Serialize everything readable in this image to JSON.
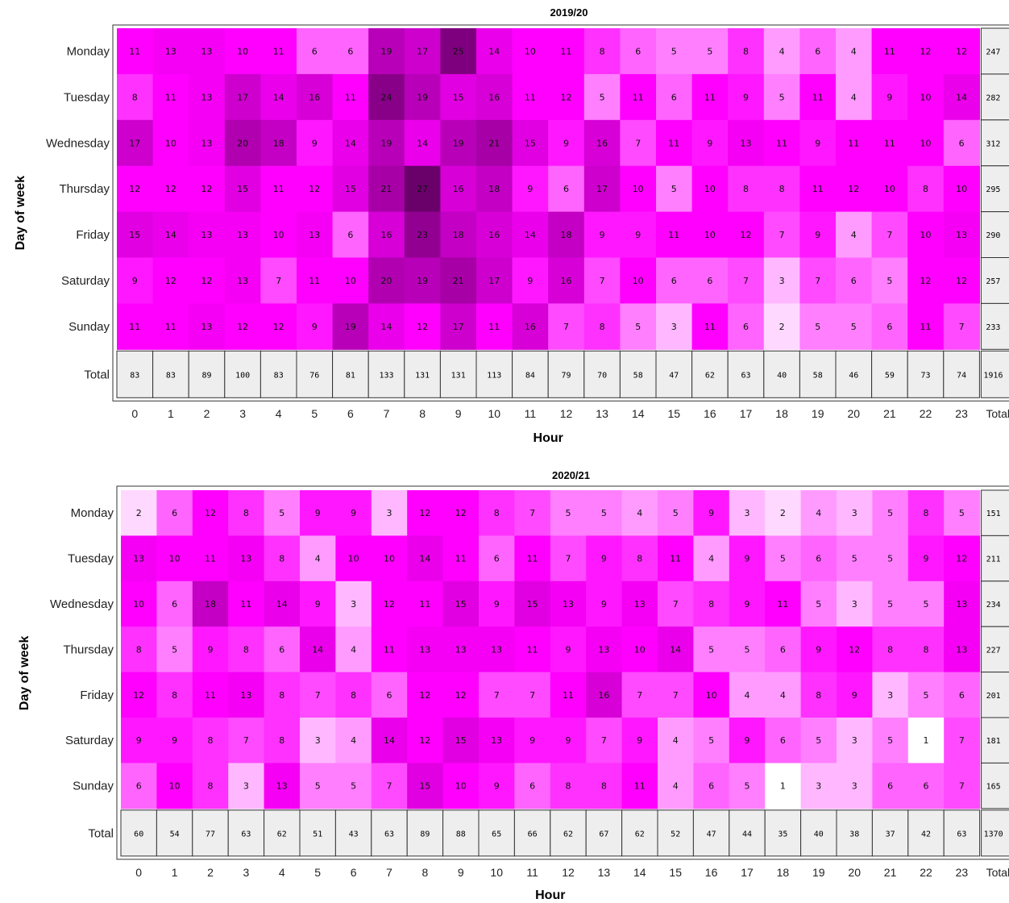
{
  "chart_data": [
    {
      "type": "heatmap",
      "title": "2019/20",
      "xlabel": "Hour",
      "ylabel": "Day of week",
      "x": [
        "0",
        "1",
        "2",
        "3",
        "4",
        "5",
        "6",
        "7",
        "8",
        "9",
        "10",
        "11",
        "12",
        "13",
        "14",
        "15",
        "16",
        "17",
        "18",
        "19",
        "20",
        "21",
        "22",
        "23"
      ],
      "x_total_label": "Total",
      "y": [
        "Monday",
        "Tuesday",
        "Wednesday",
        "Thursday",
        "Friday",
        "Saturday",
        "Sunday"
      ],
      "y_total_label": "Total",
      "values": [
        [
          11,
          13,
          13,
          10,
          11,
          6,
          6,
          19,
          17,
          25,
          14,
          10,
          11,
          8,
          6,
          5,
          5,
          8,
          4,
          6,
          4,
          11,
          12,
          12
        ],
        [
          8,
          11,
          13,
          17,
          14,
          16,
          11,
          24,
          19,
          15,
          16,
          11,
          12,
          5,
          11,
          6,
          11,
          9,
          5,
          11,
          4,
          9,
          10,
          14
        ],
        [
          17,
          10,
          13,
          20,
          18,
          9,
          14,
          19,
          14,
          19,
          21,
          15,
          9,
          16,
          7,
          11,
          9,
          13,
          11,
          9,
          11,
          11,
          10,
          6
        ],
        [
          12,
          12,
          12,
          15,
          11,
          12,
          15,
          21,
          27,
          16,
          18,
          9,
          6,
          17,
          10,
          5,
          10,
          8,
          8,
          11,
          12,
          10,
          8,
          10
        ],
        [
          15,
          14,
          13,
          13,
          10,
          13,
          6,
          16,
          23,
          18,
          16,
          14,
          18,
          9,
          9,
          11,
          10,
          12,
          7,
          9,
          4,
          7,
          10,
          13
        ],
        [
          9,
          12,
          12,
          13,
          7,
          11,
          10,
          20,
          19,
          21,
          17,
          9,
          16,
          7,
          10,
          6,
          6,
          7,
          3,
          7,
          6,
          5,
          12,
          12
        ],
        [
          11,
          11,
          13,
          12,
          12,
          9,
          19,
          14,
          12,
          17,
          11,
          16,
          7,
          8,
          5,
          3,
          11,
          6,
          2,
          5,
          5,
          6,
          11,
          7
        ]
      ],
      "row_totals": [
        247,
        282,
        312,
        295,
        290,
        257,
        233
      ],
      "col_totals": [
        83,
        83,
        89,
        100,
        83,
        76,
        81,
        133,
        131,
        131,
        113,
        84,
        79,
        70,
        58,
        47,
        62,
        63,
        40,
        58,
        46,
        59,
        73,
        74
      ],
      "grand_total": 1916,
      "color_scale": [
        "#ffffff",
        "#ff00ff",
        "#6a006a"
      ]
    },
    {
      "type": "heatmap",
      "title": "2020/21",
      "xlabel": "Hour",
      "ylabel": "Day of week",
      "x": [
        "0",
        "1",
        "2",
        "3",
        "4",
        "5",
        "6",
        "7",
        "8",
        "9",
        "10",
        "11",
        "12",
        "13",
        "14",
        "15",
        "16",
        "17",
        "18",
        "19",
        "20",
        "21",
        "22",
        "23"
      ],
      "x_total_label": "Total",
      "y": [
        "Monday",
        "Tuesday",
        "Wednesday",
        "Thursday",
        "Friday",
        "Saturday",
        "Sunday"
      ],
      "y_total_label": "Total",
      "values": [
        [
          2,
          6,
          12,
          8,
          5,
          9,
          9,
          3,
          12,
          12,
          8,
          7,
          5,
          5,
          4,
          5,
          9,
          3,
          2,
          4,
          3,
          5,
          8,
          5
        ],
        [
          13,
          10,
          11,
          13,
          8,
          4,
          10,
          10,
          14,
          11,
          6,
          11,
          7,
          9,
          8,
          11,
          4,
          9,
          5,
          6,
          5,
          5,
          9,
          12
        ],
        [
          10,
          6,
          18,
          11,
          14,
          9,
          3,
          12,
          11,
          15,
          9,
          15,
          13,
          9,
          13,
          7,
          8,
          9,
          11,
          5,
          3,
          5,
          5,
          13
        ],
        [
          8,
          5,
          9,
          8,
          6,
          14,
          4,
          11,
          13,
          13,
          13,
          11,
          9,
          13,
          10,
          14,
          5,
          5,
          6,
          9,
          12,
          8,
          8,
          13
        ],
        [
          12,
          8,
          11,
          13,
          8,
          7,
          8,
          6,
          12,
          12,
          7,
          7,
          11,
          16,
          7,
          7,
          10,
          4,
          4,
          8,
          9,
          3,
          5,
          6
        ],
        [
          9,
          9,
          8,
          7,
          8,
          3,
          4,
          14,
          12,
          15,
          13,
          9,
          9,
          7,
          9,
          4,
          5,
          9,
          6,
          5,
          3,
          5,
          1,
          7
        ],
        [
          6,
          10,
          8,
          3,
          13,
          5,
          5,
          7,
          15,
          10,
          9,
          6,
          8,
          8,
          11,
          4,
          6,
          5,
          1,
          3,
          3,
          6,
          6,
          7
        ]
      ],
      "row_totals": [
        151,
        211,
        234,
        227,
        201,
        181,
        165
      ],
      "col_totals": [
        60,
        54,
        77,
        63,
        62,
        51,
        43,
        63,
        89,
        88,
        65,
        66,
        62,
        67,
        62,
        52,
        47,
        44,
        35,
        40,
        38,
        37,
        42,
        63
      ],
      "grand_total": 1370,
      "color_scale": [
        "#ffffff",
        "#ff00ff",
        "#6a006a"
      ]
    }
  ]
}
